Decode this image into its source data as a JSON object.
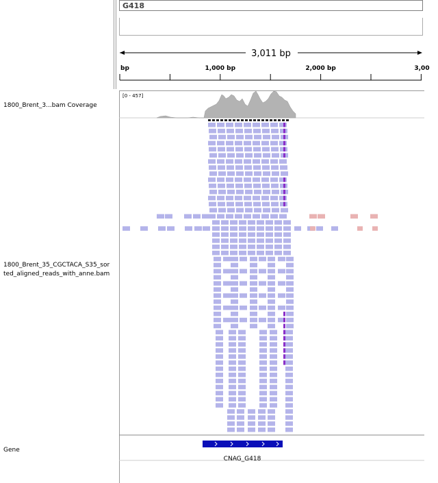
{
  "locus": {
    "chrom": "G418"
  },
  "ruler": {
    "span_label": "3,011 bp",
    "ticks": [
      {
        "label": "bp",
        "pos": 0
      },
      {
        "label": "1,000 bp",
        "pos": 1000
      },
      {
        "label": "2,000 bp",
        "pos": 2000
      },
      {
        "label": "3,00",
        "pos": 3000
      }
    ],
    "minor_ticks": [
      500,
      1500,
      2500
    ],
    "total_bp": 3011
  },
  "tracks": {
    "coverage": {
      "name": "1800_Brent_3...bam Coverage",
      "range": "[0 - 457]"
    },
    "alignment": {
      "name": "1800_Brent_35_CGCTACA_S35_sorted_aligned_reads_with_anne.bam"
    },
    "gene": {
      "name": "Gene",
      "feature_name": "CNAG_G418"
    }
  },
  "colors": {
    "coverage_fill": "#b3b3b3",
    "read_fill": "#b4b4ea",
    "read_pair_orphan": "#e9b3b3",
    "mismatch_purple": "#8b2fc9",
    "gene_blue": "#0a0fb8"
  }
}
